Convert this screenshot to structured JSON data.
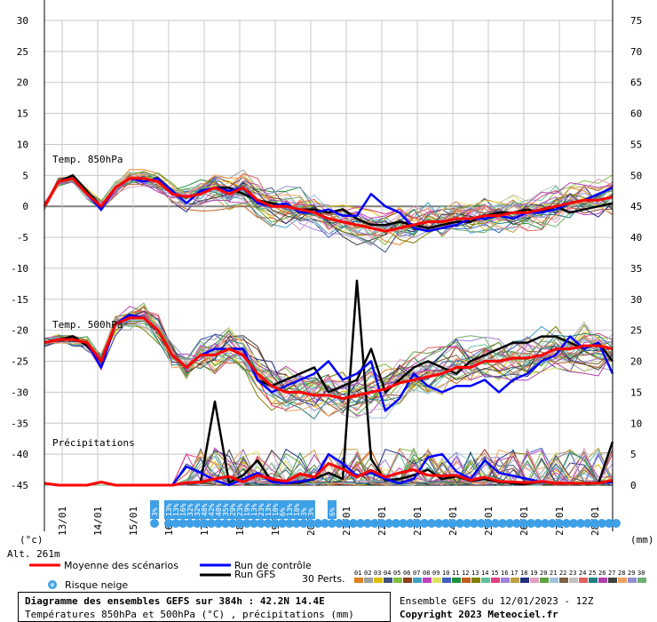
{
  "chart_data": {
    "type": "line",
    "y_left": {
      "min": -45,
      "max": 30,
      "step": 5,
      "unit": "(°c)"
    },
    "y_right": {
      "min": 0,
      "max": 75,
      "step": 5,
      "unit": "(mm)"
    },
    "x": {
      "start": "12/01 12Z",
      "days": 16,
      "tick_labels": [
        "13/01",
        "14/01",
        "15/01",
        "16/01",
        "17/01",
        "18/01",
        "19/01",
        "20/01",
        "21/01",
        "22/01",
        "23/01",
        "24/01",
        "25/01",
        "26/01",
        "27/01",
        "28/01"
      ]
    },
    "grid": true,
    "altitude_label": "Alt. 261m",
    "panel_labels": {
      "t850": "Temp. 850hPa",
      "t500": "Temp. 500hPa",
      "precip": "Précipitations"
    },
    "series": [
      {
        "name": "Moyenne des scénarios",
        "color": "#ff0000",
        "t850": [
          0,
          4,
          4.5,
          2,
          0,
          3,
          4.5,
          4.5,
          4,
          2,
          1.5,
          2,
          3,
          2,
          3,
          1,
          0,
          0,
          -0.5,
          -1,
          -2,
          -2.5,
          -3,
          -3.5,
          -4,
          -3.5,
          -3,
          -2.5,
          -2.5,
          -2,
          -2,
          -1.5,
          -1.5,
          -1,
          -1,
          -0.5,
          0,
          0.5,
          1,
          1,
          1.5
        ],
        "t500": [
          -22,
          -21.5,
          -21.5,
          -22,
          -25,
          -19,
          -18,
          -18,
          -20,
          -24,
          -26,
          -24,
          -24,
          -23,
          -24,
          -27,
          -29,
          -30,
          -30,
          -30.5,
          -30.5,
          -31,
          -30.5,
          -30,
          -29.5,
          -28.5,
          -28,
          -27.5,
          -27,
          -26,
          -26,
          -25,
          -25,
          -24.5,
          -24.5,
          -24,
          -23,
          -23,
          -22.5,
          -22.5,
          -23
        ],
        "precip": [
          0.3,
          0,
          0,
          0,
          0.5,
          0,
          0,
          0,
          0,
          0,
          0.4,
          0.5,
          1,
          1.4,
          0.5,
          1.6,
          1,
          0.6,
          1.8,
          1.3,
          3.5,
          2.6,
          1.3,
          2.4,
          1.3,
          2,
          2.5,
          1.6,
          1.5,
          1.6,
          0.8,
          1.3,
          0.6,
          0.5,
          0.4,
          0.6,
          0.3,
          0.3,
          0.3,
          0.3,
          0.8
        ]
      },
      {
        "name": "Run de contrôle",
        "color": "#0000ff",
        "t850": [
          0,
          4,
          4.5,
          2,
          -0.5,
          3,
          4.5,
          4,
          4.5,
          2.5,
          0.5,
          2.5,
          3,
          2.5,
          3,
          0.5,
          0,
          0.5,
          -1,
          -1,
          -0.5,
          -1.5,
          -1.5,
          2,
          0,
          -1,
          -3.5,
          -4,
          -3.5,
          -3,
          -2,
          -2,
          -1.5,
          -2,
          -1,
          -1,
          -0.5,
          0.5,
          1,
          2,
          3
        ],
        "t500": [
          -22,
          -21.5,
          -21.5,
          -22,
          -26,
          -19,
          -17.5,
          -18,
          -20,
          -24,
          -26,
          -24,
          -23,
          -23,
          -23,
          -28,
          -30,
          -29,
          -28,
          -27,
          -25,
          -28,
          -27,
          -25,
          -33,
          -31,
          -27,
          -29,
          -30,
          -29,
          -29,
          -28,
          -30,
          -28,
          -27,
          -25,
          -24,
          -21,
          -23,
          -22,
          -27
        ],
        "precip": [
          0.3,
          0,
          0,
          0,
          0.5,
          0,
          0,
          0,
          0,
          0,
          3,
          2,
          0.8,
          0,
          1,
          2,
          0.5,
          0.3,
          0.6,
          1,
          5,
          3.5,
          1.5,
          2,
          1,
          0.3,
          1,
          4.5,
          5,
          2.2,
          1,
          4,
          2,
          1.5,
          1,
          0.5,
          0.3,
          0.3,
          0.3,
          0.3,
          0.5
        ]
      },
      {
        "name": "Run GFS",
        "color": "#000000",
        "t850": [
          0,
          4,
          5,
          2.5,
          0,
          3,
          4.5,
          4.5,
          4,
          2,
          1.5,
          2,
          3,
          3,
          2,
          1,
          0.5,
          0,
          -0.5,
          -0.5,
          -1,
          -0.5,
          -2,
          -3,
          -3,
          -2.5,
          -3,
          -3.5,
          -3,
          -2.5,
          -2.5,
          -1.5,
          -1,
          -1,
          -0.5,
          -1,
          0,
          -1,
          -0.5,
          0,
          0.5
        ],
        "t500": [
          -22,
          -21.5,
          -21,
          -22.5,
          -25,
          -19,
          -17.5,
          -18,
          -20,
          -24,
          -26,
          -24,
          -24,
          -23,
          -23,
          -28,
          -29,
          -28,
          -27,
          -26,
          -30,
          -29,
          -28,
          -23,
          -30,
          -28,
          -26,
          -25,
          -26,
          -27,
          -25,
          -24,
          -23,
          -22,
          -22,
          -21,
          -21,
          -22,
          -23,
          -22,
          -25
        ],
        "precip": [
          0.3,
          0,
          0,
          0,
          0.5,
          0,
          0,
          0,
          0,
          0,
          0.3,
          0.5,
          13.5,
          0.4,
          1.6,
          4,
          0.6,
          0.3,
          0.4,
          1,
          2,
          1,
          33,
          4.2,
          0.8,
          1,
          1.6,
          2.5,
          1,
          1.4,
          0.7,
          1,
          0.5,
          0.3,
          0.2,
          0.6,
          0.3,
          0.3,
          0.3,
          0.3,
          7
        ]
      }
    ],
    "member_colors": [
      "#e08020",
      "#a0a0a0",
      "#e0c000",
      "#405080",
      "#80c040",
      "#904020",
      "#40a0c0",
      "#c040c0",
      "#e0e060",
      "#4060c0",
      "#209040",
      "#c06020",
      "#808000",
      "#60c0a0",
      "#e04080",
      "#a080e0",
      "#c0a040",
      "#203080",
      "#e0a0c0",
      "#60a040",
      "#a0c0e0",
      "#806040",
      "#c0c0c0",
      "#e06060",
      "#208080",
      "#b040b0",
      "#404040",
      "#f0a060",
      "#9090d0",
      "#70b070"
    ],
    "snow_risk": {
      "days": [
        7.5,
        8.5,
        9,
        9.5,
        10,
        10.5,
        11,
        11.5,
        12,
        12.5,
        13,
        13.5,
        14,
        14.5,
        15,
        15.5,
        16,
        16.5,
        17,
        17.5,
        18,
        18.5,
        19,
        19.5,
        20,
        20.5,
        21,
        21.5,
        22,
        22.5,
        23,
        23.5,
        24,
        24.5,
        25,
        25.5,
        26,
        26.5,
        27,
        27.5,
        28,
        28.5,
        29,
        29.5,
        30,
        30.5,
        31,
        31.5,
        32,
        32.5,
        33,
        33.5,
        34,
        34.5,
        35,
        35.5,
        36,
        36.5,
        37,
        37.5,
        38,
        38.5,
        39,
        39.5,
        40
      ],
      "labels": {
        "7.5": "3%",
        "8.5": "13%",
        "9": "13%",
        "9.5": "16%",
        "10": "32%",
        "10.5": "32%",
        "11": "48%",
        "11.5": "42%",
        "12": "48%",
        "12.5": "35%",
        "13": "29%",
        "13.5": "23%",
        "14": "19%",
        "14.5": "13%",
        "15": "23%",
        "15.5": "13%",
        "16": "10%",
        "16.5": "6%",
        "17": "13%",
        "17.5": "10%",
        "18": "3%",
        "18.5": "3%",
        "20": "6%"
      }
    }
  },
  "legend": {
    "mean": "Moyenne des scénarios",
    "control": "Run de contrôle",
    "gfs": "Run GFS",
    "snow": "Risque neige",
    "perts": "30 Perts.",
    "member_numbers": [
      "01",
      "02",
      "03",
      "04",
      "05",
      "06",
      "07",
      "08",
      "09",
      "10",
      "11",
      "12",
      "13",
      "14",
      "15",
      "16",
      "17",
      "18",
      "19",
      "20",
      "21",
      "22",
      "23",
      "24",
      "25",
      "26",
      "27",
      "28",
      "29",
      "30"
    ]
  },
  "footer": {
    "title": "Diagramme des ensembles GEFS sur 384h : 42.2N 14.4E",
    "subtitle": "Températures 850hPa et 500hPa (°C) , précipitations (mm)",
    "ensemble": "Ensemble GEFS du 12/01/2023 - 12Z",
    "copyright": "Copyright 2023 Meteociel.fr"
  }
}
